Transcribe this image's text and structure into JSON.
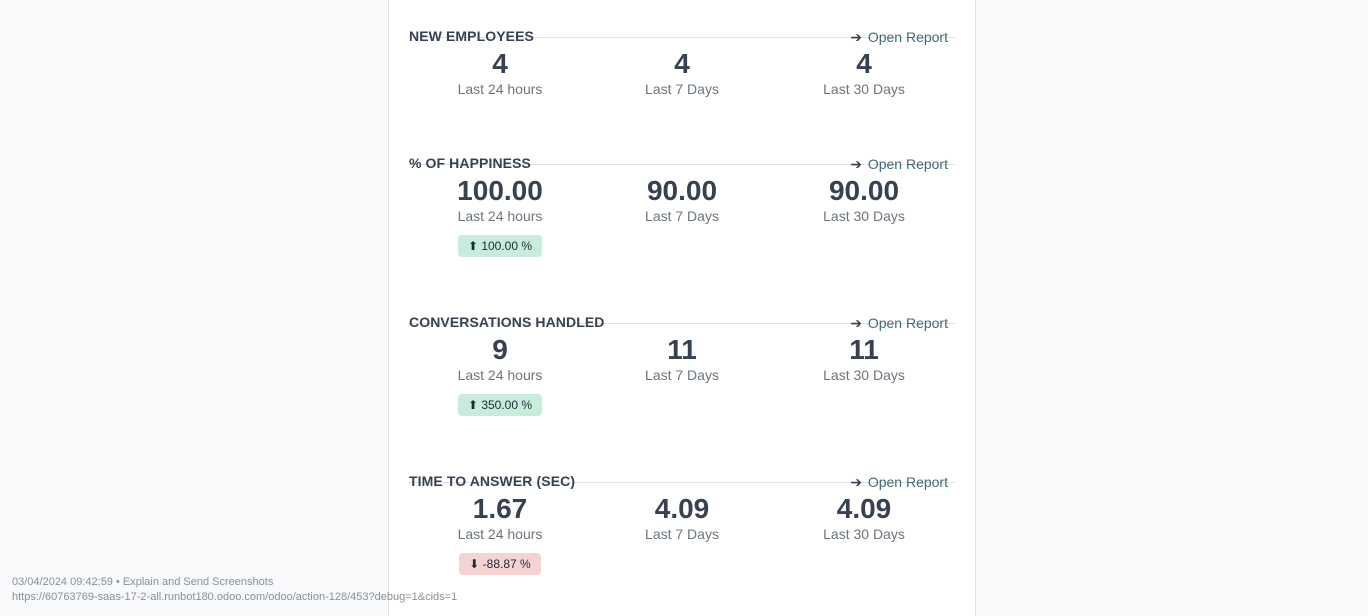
{
  "sections": [
    {
      "title": "NEW EMPLOYEES",
      "link": "Open Report",
      "arrow": "➔",
      "kpis": [
        {
          "value": "4",
          "label": "Last 24 hours"
        },
        {
          "value": "4",
          "label": "Last 7 Days"
        },
        {
          "value": "4",
          "label": "Last 30 Days"
        }
      ]
    },
    {
      "title": "% OF HAPPINESS",
      "link": "Open Report",
      "arrow": "➔",
      "kpis": [
        {
          "value": "100.00",
          "label": "Last 24 hours",
          "badge": "⬆ 100.00 %"
        },
        {
          "value": "90.00",
          "label": "Last 7 Days"
        },
        {
          "value": "90.00",
          "label": "Last 30 Days"
        }
      ]
    },
    {
      "title": "CONVERSATIONS HANDLED",
      "link": "Open Report",
      "arrow": "➔",
      "kpis": [
        {
          "value": "9",
          "label": "Last 24 hours",
          "badge": "⬆ 350.00 %"
        },
        {
          "value": "11",
          "label": "Last 7 Days"
        },
        {
          "value": "11",
          "label": "Last 30 Days"
        }
      ]
    },
    {
      "title": "TIME TO ANSWER (SEC)",
      "link": "Open Report",
      "arrow": "➔",
      "kpis": [
        {
          "value": "1.67",
          "label": "Last 24 hours",
          "badge": "⬇ -88.87 %"
        },
        {
          "value": "4.09",
          "label": "Last 7 Days"
        },
        {
          "value": "4.09",
          "label": "Last 30 Days"
        }
      ]
    }
  ],
  "footer": {
    "timestamp_line": "03/04/2024 09:42:59 • Explain and Send Screenshots",
    "url_line": "https://60763769-saas-17-2-all.runbot180.odoo.com/odoo/action-128/453?debug=1&cids=1"
  },
  "colors": {
    "badge_up": "#c8ecdb",
    "badge_down": "#f6d3d3",
    "link": "#3c6a73"
  }
}
